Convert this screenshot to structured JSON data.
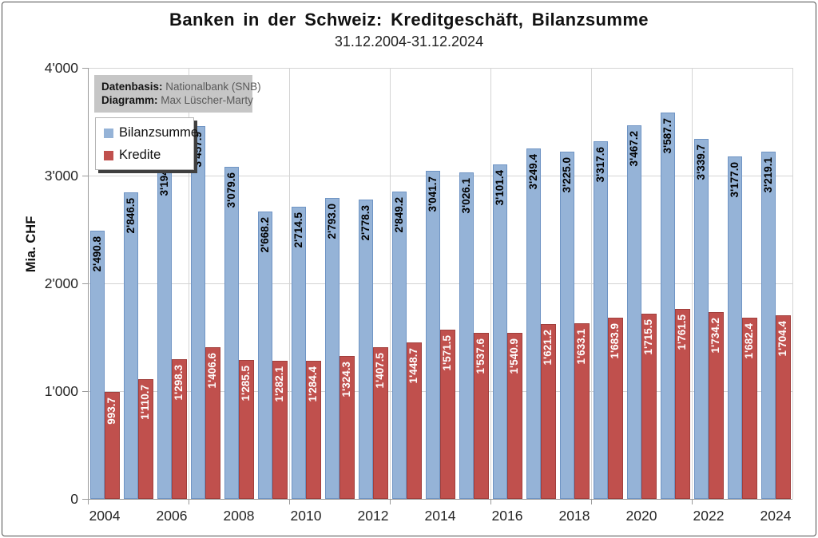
{
  "chart_data": {
    "type": "bar",
    "title": "Banken in der Schweiz: Kreditgeschäft, Bilanzsumme",
    "subtitle": "31.12.2004-31.12.2024",
    "ylabel": "Mia. CHF",
    "ylim": [
      0,
      4000
    ],
    "ytick_values": [
      0,
      1000,
      2000,
      3000,
      4000
    ],
    "ytick_labels": [
      "0",
      "1'000",
      "2'000",
      "3'000",
      "4'000"
    ],
    "categories": [
      2004,
      2005,
      2006,
      2007,
      2008,
      2009,
      2010,
      2011,
      2012,
      2013,
      2014,
      2015,
      2016,
      2017,
      2018,
      2019,
      2020,
      2021,
      2022,
      2023,
      2024
    ],
    "xtick_labels": [
      "2004",
      "2006",
      "2008",
      "2010",
      "2012",
      "2014",
      "2016",
      "2018",
      "2020",
      "2022",
      "2024"
    ],
    "grid": {
      "horizontal": true,
      "vertical_interval_years": 3
    },
    "legend_position": "top-left-inside",
    "series": [
      {
        "name": "Bilanzsumme",
        "color": "#95b3d7",
        "border_color": "#6f94c4",
        "label_color": "#000000",
        "values": [
          2490.8,
          2846.5,
          3194.2,
          3457.9,
          3079.6,
          2668.2,
          2714.5,
          2793.0,
          2778.3,
          2849.2,
          3041.7,
          3026.1,
          3101.4,
          3249.4,
          3225.0,
          3317.6,
          3467.2,
          3587.7,
          3339.7,
          3177.0,
          3219.1
        ],
        "labels": [
          "2'490.8",
          "2'846.5",
          "3'194.2",
          "3'457.9",
          "3'079.6",
          "2'668.2",
          "2'714.5",
          "2'793.0",
          "2'778.3",
          "2'849.2",
          "3'041.7",
          "3'026.1",
          "3'101.4",
          "3'249.4",
          "3'225.0",
          "3'317.6",
          "3'467.2",
          "3'587.7",
          "3'339.7",
          "3'177.0",
          "3'219.1"
        ]
      },
      {
        "name": "Kredite",
        "color": "#c0504d",
        "border_color": "#a13f3c",
        "label_color": "#ffffff",
        "values": [
          993.7,
          1110.7,
          1298.3,
          1406.6,
          1285.5,
          1282.1,
          1284.4,
          1324.3,
          1407.5,
          1448.7,
          1571.5,
          1537.6,
          1540.9,
          1621.2,
          1633.1,
          1683.9,
          1715.5,
          1761.5,
          1734.2,
          1682.4,
          1704.4
        ],
        "labels": [
          "993.7",
          "1'110.7",
          "1'298.3",
          "1'406.6",
          "1'285.5",
          "1'282.1",
          "1'284.4",
          "1'324.3",
          "1'407.5",
          "1'448.7",
          "1'571.5",
          "1'537.6",
          "1'540.9",
          "1'621.2",
          "1'633.1",
          "1'683.9",
          "1'715.5",
          "1'761.5",
          "1'734.2",
          "1'682.4",
          "1'704.4"
        ]
      }
    ],
    "source_box": {
      "datenbasis_label": "Datenbasis:",
      "datenbasis_value": "Nationalbank (SNB)",
      "diagramm_label": "Diagramm:",
      "diagramm_value": "Max Lüscher-Marty"
    }
  },
  "colors": {
    "gridline": "#d4d4d4",
    "axis": "#9a9a9a",
    "info_box_bg": "#c6c6c6",
    "legend_border": "#b3b3b3",
    "legend_shadow": "#3f3f3f",
    "frame_border": "#4e4e4e"
  }
}
